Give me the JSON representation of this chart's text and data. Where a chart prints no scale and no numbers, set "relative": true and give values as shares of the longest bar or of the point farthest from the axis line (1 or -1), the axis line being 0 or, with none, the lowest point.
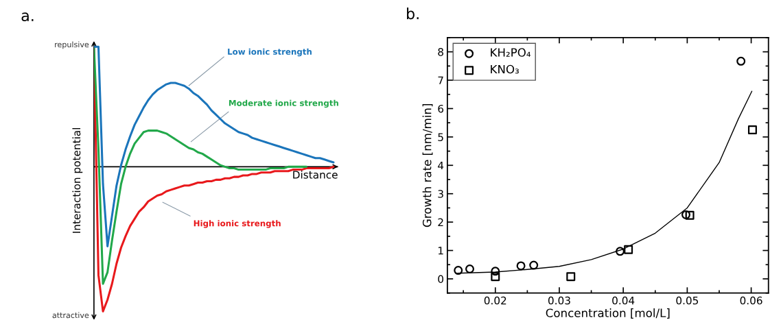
{
  "chart_data": [
    {
      "type": "line",
      "title": "a.",
      "xlabel": "Distance",
      "ylabel": "Interaction potential",
      "relative": true,
      "annotations": [
        "repulsive",
        "attractive"
      ],
      "categories": [
        null,
        null,
        null,
        null,
        null,
        null,
        null,
        null,
        null,
        null,
        null,
        null,
        null,
        null,
        null,
        null,
        null,
        null,
        null,
        null,
        null,
        null,
        null,
        null,
        null,
        null,
        null,
        null,
        null,
        null,
        null,
        null,
        null,
        null,
        null,
        null,
        null,
        null,
        null,
        null,
        null,
        null,
        null,
        null,
        null,
        null,
        null,
        null,
        null,
        null,
        null,
        null,
        null,
        null
      ],
      "series": [
        {
          "name": "Low ionic strength",
          "color": "#1b75bb",
          "values": [
            0.83,
            0.83,
            -0.12,
            -0.55,
            -0.34,
            -0.13,
            0.01,
            0.12,
            0.21,
            0.29,
            0.35,
            0.41,
            0.46,
            0.5,
            0.53,
            0.55,
            0.57,
            0.58,
            0.58,
            0.57,
            0.56,
            0.54,
            0.51,
            0.49,
            0.46,
            0.43,
            0.39,
            0.36,
            0.33,
            0.3,
            0.28,
            0.26,
            0.24,
            0.23,
            0.22,
            0.2,
            0.19,
            0.18,
            0.17,
            0.16,
            0.15,
            0.14,
            0.13,
            0.12,
            0.11,
            0.1,
            0.09,
            0.08,
            0.07,
            0.06,
            0.06,
            0.05,
            0.04,
            0.03
          ]
        },
        {
          "name": "Moderate ionic strength",
          "color": "#22a84a",
          "values": [
            0.83,
            0.12,
            -0.81,
            -0.73,
            -0.51,
            -0.31,
            -0.12,
            0.0,
            0.09,
            0.16,
            0.2,
            0.24,
            0.25,
            0.25,
            0.25,
            0.24,
            0.23,
            0.21,
            0.19,
            0.17,
            0.15,
            0.13,
            0.12,
            0.1,
            0.09,
            0.07,
            0.05,
            0.03,
            0.01,
            0.0,
            -0.01,
            -0.01,
            -0.02,
            -0.02,
            -0.02,
            -0.02,
            -0.02,
            -0.02,
            -0.02,
            -0.01,
            -0.01,
            -0.01,
            -0.01,
            0.0,
            0.0,
            0.0,
            0.0,
            0.0,
            null,
            null,
            null,
            null,
            null,
            null
          ]
        },
        {
          "name": "High ionic strength",
          "color": "#e8191c",
          "values": [
            0.83,
            -0.75,
            -1.0,
            -0.92,
            -0.81,
            -0.67,
            -0.56,
            -0.48,
            -0.41,
            -0.36,
            -0.31,
            -0.28,
            -0.24,
            -0.22,
            -0.2,
            -0.19,
            -0.17,
            -0.16,
            -0.15,
            -0.14,
            -0.13,
            -0.13,
            -0.12,
            -0.11,
            -0.11,
            -0.1,
            -0.1,
            -0.09,
            -0.09,
            -0.08,
            -0.08,
            -0.07,
            -0.07,
            -0.06,
            -0.06,
            -0.05,
            -0.05,
            -0.04,
            -0.04,
            -0.04,
            -0.03,
            -0.03,
            -0.03,
            -0.03,
            -0.02,
            -0.02,
            -0.02,
            -0.01,
            -0.01,
            -0.01,
            -0.01,
            -0.01,
            -0.01,
            0.0
          ]
        }
      ]
    },
    {
      "type": "scatter",
      "title": "b.",
      "xlabel": "Concentration [mol/L]",
      "ylabel": "Growth rate [nm/min]",
      "xlim": [
        0.0125,
        0.0627
      ],
      "ylim": [
        -0.5,
        8.5
      ],
      "xticks": [
        0.02,
        0.03,
        0.04,
        0.05,
        0.06
      ],
      "yticks": [
        0,
        1,
        2,
        3,
        4,
        5,
        6,
        7,
        8
      ],
      "legend": "top left",
      "grid": false,
      "series": [
        {
          "name": "KH₂PO₄",
          "color": "#000000",
          "marker": "circle",
          "x": [
            0.0142,
            0.016,
            0.02,
            0.024,
            0.026,
            0.0395,
            0.0498,
            0.0584
          ],
          "values": [
            0.3,
            0.35,
            0.27,
            0.46,
            0.48,
            0.97,
            2.26,
            7.67
          ]
        },
        {
          "name": "KNO₃",
          "color": "#000000",
          "marker": "square",
          "x": [
            0.02,
            0.0318,
            0.0408,
            0.0504,
            0.0602
          ],
          "values": [
            0.08,
            0.08,
            1.03,
            2.24,
            5.25
          ]
        },
        {
          "type": "line",
          "color": "#000000",
          "x": [
            0.0141,
            0.02,
            0.025,
            0.03,
            0.035,
            0.04,
            0.045,
            0.05,
            0.055,
            0.058,
            0.0601
          ],
          "values": [
            0.2,
            0.24,
            0.33,
            0.44,
            0.68,
            1.05,
            1.61,
            2.5,
            4.1,
            5.64,
            6.61
          ]
        }
      ]
    }
  ]
}
